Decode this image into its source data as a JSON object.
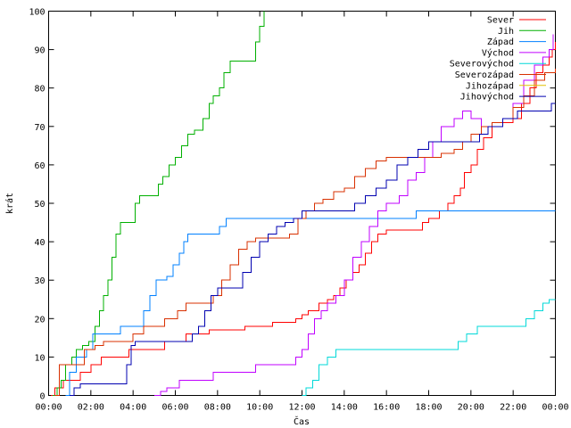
{
  "chart_data": {
    "type": "line",
    "title": "",
    "xlabel": "Čas",
    "ylabel": "krát",
    "xlim": [
      0,
      24
    ],
    "ylim": [
      0,
      100
    ],
    "x_ticks": [
      {
        "value": 0,
        "label": "00:00"
      },
      {
        "value": 2,
        "label": "02:00"
      },
      {
        "value": 4,
        "label": "04:00"
      },
      {
        "value": 6,
        "label": "06:00"
      },
      {
        "value": 8,
        "label": "08:00"
      },
      {
        "value": 10,
        "label": "10:00"
      },
      {
        "value": 12,
        "label": "12:00"
      },
      {
        "value": 14,
        "label": "14:00"
      },
      {
        "value": 16,
        "label": "16:00"
      },
      {
        "value": 18,
        "label": "18:00"
      },
      {
        "value": 20,
        "label": "20:00"
      },
      {
        "value": 22,
        "label": "22:00"
      },
      {
        "value": 24,
        "label": "00:00"
      }
    ],
    "y_ticks": [
      0,
      10,
      20,
      30,
      40,
      50,
      60,
      70,
      80,
      90,
      100
    ],
    "grid": false,
    "legend_position": "top-right",
    "series": [
      {
        "name": "Sever",
        "color": "#ff0000",
        "points": [
          [
            0.1,
            0
          ],
          [
            0.3,
            2
          ],
          [
            0.7,
            4
          ],
          [
            1.5,
            6
          ],
          [
            2.0,
            8
          ],
          [
            2.5,
            10
          ],
          [
            3.3,
            10
          ],
          [
            3.8,
            12
          ],
          [
            5.3,
            12
          ],
          [
            5.5,
            14
          ],
          [
            6.3,
            14
          ],
          [
            6.5,
            16
          ],
          [
            7.3,
            16
          ],
          [
            7.6,
            17
          ],
          [
            9.0,
            17
          ],
          [
            9.3,
            18
          ],
          [
            10.3,
            18
          ],
          [
            10.6,
            19
          ],
          [
            11.4,
            19
          ],
          [
            11.7,
            20
          ],
          [
            12.0,
            21
          ],
          [
            12.3,
            22
          ],
          [
            12.8,
            24
          ],
          [
            13.2,
            25
          ],
          [
            13.5,
            26
          ],
          [
            13.8,
            28
          ],
          [
            14.1,
            30
          ],
          [
            14.4,
            32
          ],
          [
            14.7,
            34
          ],
          [
            15.0,
            37
          ],
          [
            15.3,
            40
          ],
          [
            15.6,
            42
          ],
          [
            16.0,
            43
          ],
          [
            17.4,
            43
          ],
          [
            17.7,
            45
          ],
          [
            18.0,
            46
          ],
          [
            18.5,
            48
          ],
          [
            18.9,
            50
          ],
          [
            19.2,
            52
          ],
          [
            19.5,
            54
          ],
          [
            19.7,
            58
          ],
          [
            20.0,
            60
          ],
          [
            20.3,
            64
          ],
          [
            20.6,
            67
          ],
          [
            21.0,
            70
          ],
          [
            21.5,
            71
          ],
          [
            22.0,
            72
          ],
          [
            22.4,
            76
          ],
          [
            22.8,
            80
          ],
          [
            23.1,
            84
          ],
          [
            23.4,
            86
          ],
          [
            23.7,
            88
          ],
          [
            23.85,
            90
          ],
          [
            24.0,
            92
          ]
        ]
      },
      {
        "name": "Jih",
        "color": "#00b000",
        "points": [
          [
            0.2,
            0
          ],
          [
            0.4,
            2
          ],
          [
            0.6,
            4
          ],
          [
            0.8,
            8
          ],
          [
            1.1,
            10
          ],
          [
            1.3,
            12
          ],
          [
            1.6,
            13
          ],
          [
            1.9,
            14
          ],
          [
            2.2,
            18
          ],
          [
            2.4,
            22
          ],
          [
            2.6,
            26
          ],
          [
            2.8,
            30
          ],
          [
            3.0,
            36
          ],
          [
            3.2,
            42
          ],
          [
            3.4,
            45
          ],
          [
            3.9,
            45
          ],
          [
            4.1,
            50
          ],
          [
            4.3,
            52
          ],
          [
            5.0,
            52
          ],
          [
            5.2,
            55
          ],
          [
            5.4,
            57
          ],
          [
            5.7,
            60
          ],
          [
            6.0,
            62
          ],
          [
            6.3,
            65
          ],
          [
            6.6,
            68
          ],
          [
            6.9,
            69
          ],
          [
            7.3,
            72
          ],
          [
            7.6,
            76
          ],
          [
            7.8,
            78
          ],
          [
            8.1,
            80
          ],
          [
            8.3,
            84
          ],
          [
            8.6,
            87
          ],
          [
            9.5,
            87
          ],
          [
            9.8,
            92
          ],
          [
            10.0,
            96
          ],
          [
            10.2,
            100
          ]
        ]
      },
      {
        "name": "Západ",
        "color": "#0080ff",
        "points": [
          [
            0.8,
            0
          ],
          [
            1.0,
            6
          ],
          [
            1.3,
            10
          ],
          [
            1.8,
            12
          ],
          [
            2.1,
            16
          ],
          [
            3.2,
            16
          ],
          [
            3.4,
            18
          ],
          [
            4.2,
            18
          ],
          [
            4.5,
            22
          ],
          [
            4.8,
            26
          ],
          [
            5.1,
            30
          ],
          [
            5.6,
            31
          ],
          [
            5.9,
            34
          ],
          [
            6.2,
            37
          ],
          [
            6.4,
            40
          ],
          [
            6.6,
            42
          ],
          [
            7.8,
            42
          ],
          [
            8.1,
            44
          ],
          [
            8.4,
            46
          ],
          [
            17.3,
            46
          ],
          [
            17.4,
            48
          ],
          [
            24.0,
            48
          ]
        ]
      },
      {
        "name": "Východ",
        "color": "#c000ff",
        "points": [
          [
            5.0,
            0
          ],
          [
            5.3,
            1
          ],
          [
            5.6,
            2
          ],
          [
            6.2,
            4
          ],
          [
            7.5,
            4
          ],
          [
            7.8,
            6
          ],
          [
            9.5,
            6
          ],
          [
            9.8,
            8
          ],
          [
            11.4,
            8
          ],
          [
            11.7,
            10
          ],
          [
            12.0,
            12
          ],
          [
            12.3,
            16
          ],
          [
            12.6,
            20
          ],
          [
            12.9,
            22
          ],
          [
            13.2,
            24
          ],
          [
            13.6,
            26
          ],
          [
            14.0,
            30
          ],
          [
            14.4,
            36
          ],
          [
            14.8,
            40
          ],
          [
            15.2,
            44
          ],
          [
            15.6,
            48
          ],
          [
            16.0,
            50
          ],
          [
            16.6,
            52
          ],
          [
            17.0,
            56
          ],
          [
            17.4,
            58
          ],
          [
            17.8,
            62
          ],
          [
            18.2,
            66
          ],
          [
            18.6,
            70
          ],
          [
            19.2,
            72
          ],
          [
            19.6,
            74
          ],
          [
            20.0,
            72
          ],
          [
            20.5,
            70
          ],
          [
            21.0,
            70
          ],
          [
            21.5,
            72
          ],
          [
            22.0,
            76
          ],
          [
            22.5,
            82
          ],
          [
            23.0,
            86
          ],
          [
            23.4,
            88
          ],
          [
            23.7,
            90
          ],
          [
            23.9,
            94
          ]
        ]
      },
      {
        "name": "Severovýchod",
        "color": "#00d8d8",
        "points": [
          [
            12.0,
            0
          ],
          [
            12.2,
            2
          ],
          [
            12.5,
            4
          ],
          [
            12.8,
            8
          ],
          [
            13.2,
            10
          ],
          [
            13.6,
            12
          ],
          [
            19.0,
            12
          ],
          [
            19.4,
            14
          ],
          [
            19.8,
            16
          ],
          [
            20.3,
            18
          ],
          [
            22.2,
            18
          ],
          [
            22.6,
            20
          ],
          [
            23.0,
            22
          ],
          [
            23.4,
            24
          ],
          [
            23.7,
            25
          ],
          [
            24.0,
            25
          ]
        ]
      },
      {
        "name": "Severozápad",
        "color": "#d83000",
        "points": [
          [
            0.3,
            0
          ],
          [
            0.5,
            8
          ],
          [
            1.4,
            8
          ],
          [
            1.7,
            12
          ],
          [
            2.2,
            13
          ],
          [
            2.6,
            14
          ],
          [
            3.8,
            14
          ],
          [
            4.0,
            16
          ],
          [
            4.5,
            18
          ],
          [
            5.2,
            18
          ],
          [
            5.5,
            20
          ],
          [
            6.1,
            22
          ],
          [
            6.5,
            24
          ],
          [
            7.5,
            24
          ],
          [
            7.8,
            26
          ],
          [
            8.2,
            30
          ],
          [
            8.6,
            34
          ],
          [
            9.0,
            38
          ],
          [
            9.4,
            40
          ],
          [
            9.8,
            41
          ],
          [
            11.0,
            41
          ],
          [
            11.4,
            42
          ],
          [
            11.8,
            46
          ],
          [
            12.2,
            48
          ],
          [
            12.6,
            50
          ],
          [
            13.0,
            51
          ],
          [
            13.5,
            53
          ],
          [
            14.0,
            54
          ],
          [
            14.5,
            57
          ],
          [
            15.0,
            59
          ],
          [
            15.5,
            61
          ],
          [
            16.0,
            62
          ],
          [
            18.0,
            62
          ],
          [
            18.6,
            63
          ],
          [
            19.2,
            64
          ],
          [
            19.6,
            66
          ],
          [
            20.0,
            68
          ],
          [
            20.5,
            70
          ],
          [
            21.0,
            71
          ],
          [
            21.5,
            72
          ],
          [
            22.0,
            75
          ],
          [
            22.5,
            78
          ],
          [
            23.0,
            82
          ],
          [
            23.5,
            84
          ],
          [
            24.0,
            85
          ]
        ]
      },
      {
        "name": "Jihozápad",
        "color": "#e0c000",
        "points": []
      },
      {
        "name": "Jihovýchod",
        "color": "#0000b0",
        "points": [
          [
            1.0,
            0
          ],
          [
            1.2,
            2
          ],
          [
            1.5,
            3
          ],
          [
            3.5,
            3
          ],
          [
            3.7,
            8
          ],
          [
            3.9,
            13
          ],
          [
            4.1,
            14
          ],
          [
            6.5,
            14
          ],
          [
            6.8,
            16
          ],
          [
            7.1,
            18
          ],
          [
            7.4,
            22
          ],
          [
            7.7,
            26
          ],
          [
            8.0,
            28
          ],
          [
            8.8,
            28
          ],
          [
            9.2,
            32
          ],
          [
            9.6,
            36
          ],
          [
            10.0,
            40
          ],
          [
            10.4,
            42
          ],
          [
            10.8,
            44
          ],
          [
            11.2,
            45
          ],
          [
            11.6,
            46
          ],
          [
            12.0,
            48
          ],
          [
            14.0,
            48
          ],
          [
            14.5,
            50
          ],
          [
            15.0,
            52
          ],
          [
            15.5,
            54
          ],
          [
            16.0,
            56
          ],
          [
            16.5,
            60
          ],
          [
            17.0,
            62
          ],
          [
            17.5,
            64
          ],
          [
            18.0,
            66
          ],
          [
            20.0,
            66
          ],
          [
            20.4,
            68
          ],
          [
            20.8,
            70
          ],
          [
            21.5,
            72
          ],
          [
            22.2,
            74
          ],
          [
            23.5,
            74
          ],
          [
            23.8,
            76
          ],
          [
            24.0,
            76
          ]
        ]
      }
    ]
  }
}
